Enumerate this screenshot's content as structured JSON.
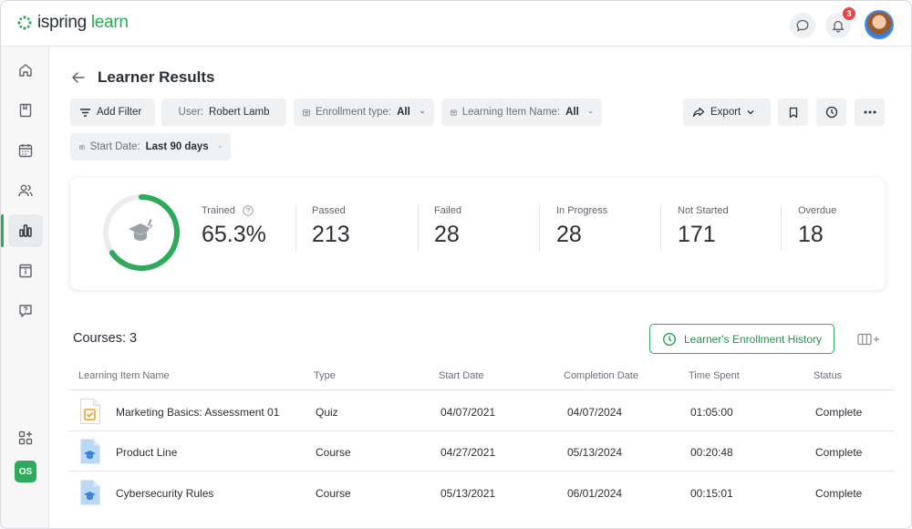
{
  "app": {
    "logo_brand": "ispring",
    "logo_product": "learn"
  },
  "topbar": {
    "notification_count": "3"
  },
  "sidebar": {
    "items": [
      {
        "icon": "home-icon"
      },
      {
        "icon": "book-icon"
      },
      {
        "icon": "calendar-icon"
      },
      {
        "icon": "users-icon"
      },
      {
        "icon": "reports-icon",
        "active": true
      },
      {
        "icon": "info-card-icon"
      },
      {
        "icon": "help-chat-icon"
      }
    ],
    "add_apps_icon": "apps-add-icon",
    "org_badge": "OS"
  },
  "page": {
    "title": "Learner Results"
  },
  "filters": {
    "add_filter": "Add Filter",
    "user_label": "User:",
    "user_value": "Robert Lamb",
    "enrollment_label": "Enrollment type:",
    "enrollment_value": "All",
    "item_name_label": "Learning Item Name:",
    "item_name_value": "All",
    "start_date_label": "Start Date:",
    "start_date_value": "Last 90 days",
    "export": "Export"
  },
  "stats": {
    "trained_label": "Trained",
    "trained_value": "65.3%",
    "trained_fraction": 0.653,
    "passed_label": "Passed",
    "passed_value": "213",
    "failed_label": "Failed",
    "failed_value": "28",
    "in_progress_label": "In Progress",
    "in_progress_value": "28",
    "not_started_label": "Not Started",
    "not_started_value": "171",
    "overdue_label": "Overdue",
    "overdue_value": "18"
  },
  "courses": {
    "title": "Courses: 3",
    "history_button": "Learner's Enrollment History",
    "columns": [
      "Learning Item Name",
      "Type",
      "Start Date",
      "Completion Date",
      "Time Spent",
      "Status"
    ],
    "rows": [
      {
        "name": "Marketing Basics: Assessment 01",
        "type": "Quiz",
        "start": "04/07/2021",
        "completion": "04/07/2024",
        "time": "01:05:00",
        "status": "Complete",
        "icon": "quiz-file-icon"
      },
      {
        "name": "Product Line",
        "type": "Course",
        "start": "04/27/2021",
        "completion": "05/13/2024",
        "time": "00:20:48",
        "status": "Complete",
        "icon": "course-file-icon"
      },
      {
        "name": "Cybersecurity Rules",
        "type": "Course",
        "start": "05/13/2021",
        "completion": "06/01/2024",
        "time": "00:15:01",
        "status": "Complete",
        "icon": "course-file-icon"
      }
    ]
  },
  "colors": {
    "accent": "#2faa5a",
    "badge": "#e5484d"
  }
}
